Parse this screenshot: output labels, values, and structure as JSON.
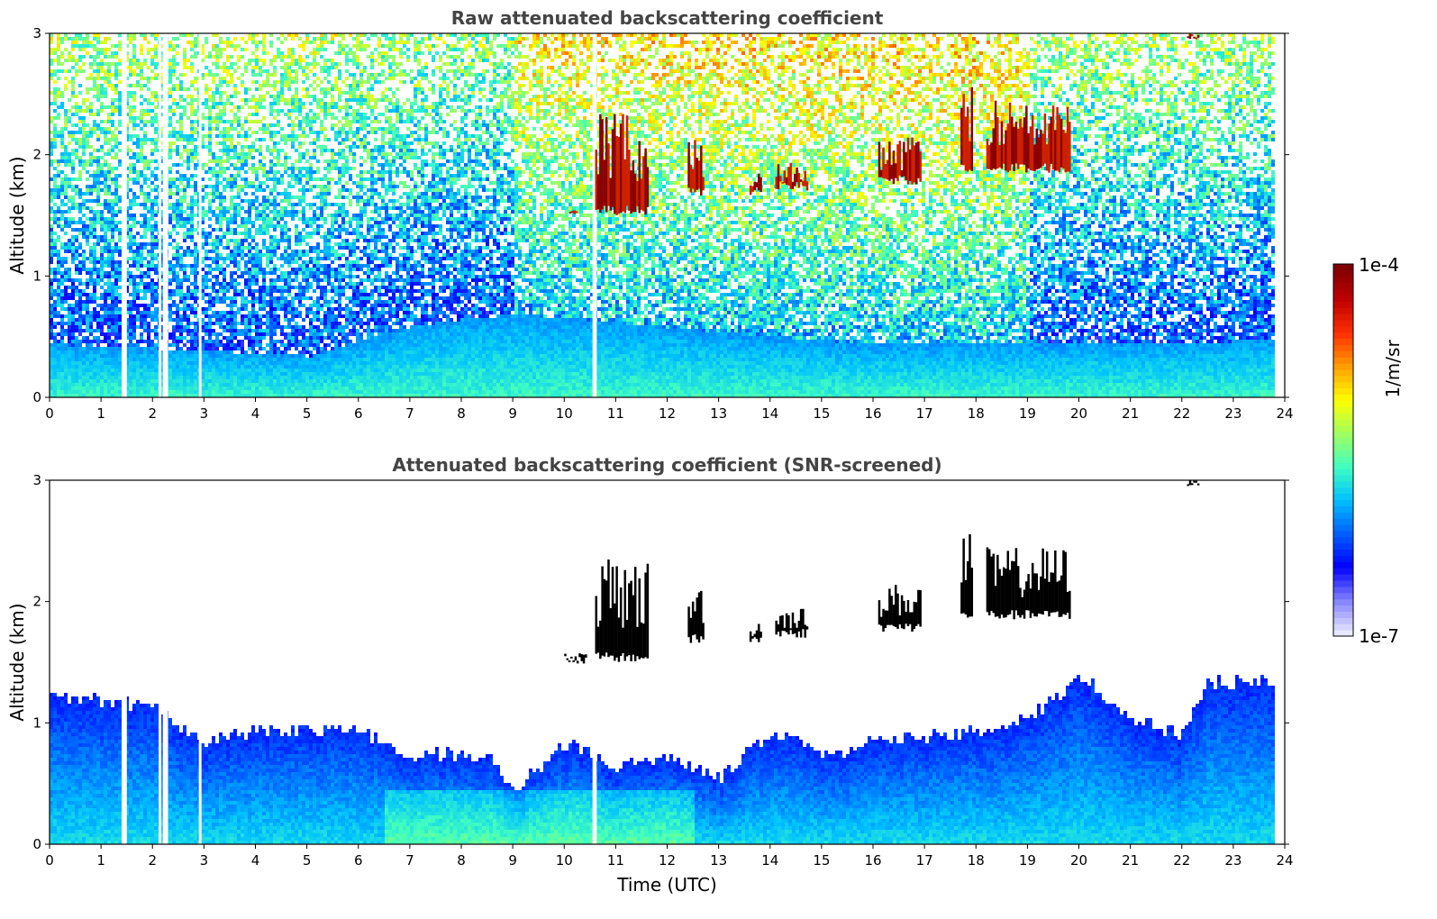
{
  "chart_data": [
    {
      "type": "heatmap",
      "title": "Raw attenuated backscattering coefficient",
      "xlabel": "",
      "ylabel": "Altitude (km)",
      "xlim": [
        0,
        24
      ],
      "ylim": [
        0,
        3
      ],
      "x_ticks": [
        "0",
        "1",
        "2",
        "3",
        "4",
        "5",
        "6",
        "7",
        "8",
        "9",
        "10",
        "11",
        "12",
        "13",
        "14",
        "15",
        "16",
        "17",
        "18",
        "19",
        "20",
        "21",
        "22",
        "23",
        "24"
      ],
      "y_ticks": [
        "0",
        "1",
        "2",
        "3"
      ],
      "data_end_hour": 23.8,
      "boundary_layer_top_km": [
        [
          0,
          0.45
        ],
        [
          3,
          0.4
        ],
        [
          5,
          0.35
        ],
        [
          7,
          0.6
        ],
        [
          9,
          0.7
        ],
        [
          10.5,
          0.65
        ],
        [
          13,
          0.55
        ],
        [
          16,
          0.45
        ],
        [
          19,
          0.45
        ],
        [
          22,
          0.45
        ],
        [
          23.8,
          0.5
        ]
      ],
      "cloud_layers": [
        {
          "start_hour": 10.1,
          "end_hour": 10.25,
          "base_km": 1.5,
          "top_km": 1.58
        },
        {
          "start_hour": 10.6,
          "end_hour": 11.6,
          "base_km": 1.5,
          "top_km": 2.35
        },
        {
          "start_hour": 12.4,
          "end_hour": 12.7,
          "base_km": 1.65,
          "top_km": 2.15
        },
        {
          "start_hour": 13.6,
          "end_hour": 13.8,
          "base_km": 1.65,
          "top_km": 1.85
        },
        {
          "start_hour": 14.1,
          "end_hour": 14.7,
          "base_km": 1.7,
          "top_km": 1.95
        },
        {
          "start_hour": 16.1,
          "end_hour": 16.9,
          "base_km": 1.75,
          "top_km": 2.15
        },
        {
          "start_hour": 17.7,
          "end_hour": 17.9,
          "base_km": 1.85,
          "top_km": 2.6
        },
        {
          "start_hour": 18.2,
          "end_hour": 19.8,
          "base_km": 1.85,
          "top_km": 2.45
        },
        {
          "start_hour": 22.1,
          "end_hour": 22.3,
          "base_km": 2.95,
          "top_km": 3.0
        }
      ]
    },
    {
      "type": "heatmap",
      "title": "Attenuated backscattering coefficient (SNR-screened)",
      "xlabel": "Time (UTC)",
      "ylabel": "Altitude (km)",
      "xlim": [
        0,
        24
      ],
      "ylim": [
        0,
        3
      ],
      "x_ticks": [
        "0",
        "1",
        "2",
        "3",
        "4",
        "5",
        "6",
        "7",
        "8",
        "9",
        "10",
        "11",
        "12",
        "13",
        "14",
        "15",
        "16",
        "17",
        "18",
        "19",
        "20",
        "21",
        "22",
        "23",
        "24"
      ],
      "y_ticks": [
        "0",
        "1",
        "2",
        "3"
      ],
      "data_end_hour": 23.8,
      "screened_top_km": [
        [
          0,
          1.25
        ],
        [
          2,
          1.15
        ],
        [
          3,
          0.85
        ],
        [
          4,
          0.95
        ],
        [
          6,
          0.95
        ],
        [
          7,
          0.75
        ],
        [
          8.5,
          0.75
        ],
        [
          9,
          0.45
        ],
        [
          10,
          0.85
        ],
        [
          11,
          0.65
        ],
        [
          12,
          0.75
        ],
        [
          13,
          0.55
        ],
        [
          14,
          0.95
        ],
        [
          15,
          0.75
        ],
        [
          16,
          0.85
        ],
        [
          17,
          0.9
        ],
        [
          18,
          0.95
        ],
        [
          19,
          1.05
        ],
        [
          20,
          1.4
        ],
        [
          21,
          1.05
        ],
        [
          22,
          0.9
        ],
        [
          22.5,
          1.35
        ],
        [
          23.8,
          1.35
        ]
      ],
      "cloud_layers": [
        {
          "start_hour": 10.0,
          "end_hour": 10.4,
          "base_km": 1.48,
          "top_km": 1.58
        },
        {
          "start_hour": 10.6,
          "end_hour": 11.6,
          "base_km": 1.5,
          "top_km": 2.35
        },
        {
          "start_hour": 12.4,
          "end_hour": 12.7,
          "base_km": 1.65,
          "top_km": 2.15
        },
        {
          "start_hour": 13.6,
          "end_hour": 13.8,
          "base_km": 1.65,
          "top_km": 1.85
        },
        {
          "start_hour": 14.1,
          "end_hour": 14.7,
          "base_km": 1.7,
          "top_km": 1.95
        },
        {
          "start_hour": 16.1,
          "end_hour": 16.9,
          "base_km": 1.75,
          "top_km": 2.15
        },
        {
          "start_hour": 17.7,
          "end_hour": 17.9,
          "base_km": 1.85,
          "top_km": 2.6
        },
        {
          "start_hour": 18.2,
          "end_hour": 19.8,
          "base_km": 1.85,
          "top_km": 2.45
        },
        {
          "start_hour": 22.1,
          "end_hour": 22.3,
          "base_km": 2.95,
          "top_km": 3.0
        }
      ]
    }
  ],
  "colorbar": {
    "label": "1/m/sr",
    "min_label": "1e-7",
    "max_label": "1e-4",
    "scale": "log",
    "colors": [
      "#e8e8ff",
      "#8080ff",
      "#0000ff",
      "#0060ff",
      "#00c0ff",
      "#40ffc0",
      "#a0ff60",
      "#ffff00",
      "#ffa000",
      "#ff3000",
      "#c00000",
      "#800000"
    ]
  }
}
